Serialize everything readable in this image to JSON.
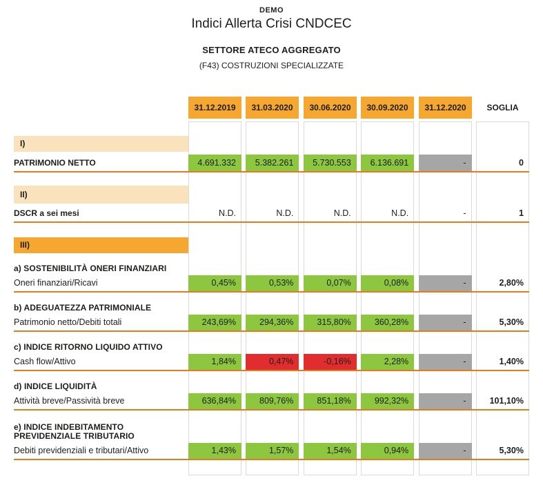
{
  "header": {
    "demo": "DEMO",
    "title": "Indici Allerta Crisi CNDCEC",
    "sector_label": "SETTORE ATECO AGGREGATO",
    "sector_value": "(F43) COSTRUZIONI SPECIALIZZATE"
  },
  "table": {
    "date_columns": [
      "31.12.2019",
      "31.03.2020",
      "30.06.2020",
      "30.09.2020",
      "31.12.2020"
    ],
    "soglia_label": "SOGLIA",
    "sections": [
      {
        "label": "I)"
      },
      {
        "label": "II)"
      },
      {
        "label": "III)"
      }
    ],
    "rows": [
      {
        "heading": null,
        "label": "PATRIMONIO NETTO",
        "label_bold": true,
        "cells": [
          {
            "value": "4.691.332",
            "status": "green"
          },
          {
            "value": "5.382.261",
            "status": "green"
          },
          {
            "value": "5.730.553",
            "status": "green"
          },
          {
            "value": "6.136.691",
            "status": "green"
          },
          {
            "value": "-",
            "status": "gray"
          }
        ],
        "soglia": "0"
      },
      {
        "heading": null,
        "label": "DSCR a sei mesi",
        "label_bold": true,
        "cells": [
          {
            "value": "N.D.",
            "status": "plain"
          },
          {
            "value": "N.D.",
            "status": "plain"
          },
          {
            "value": "N.D.",
            "status": "plain"
          },
          {
            "value": "N.D.",
            "status": "plain"
          },
          {
            "value": "-",
            "status": "plain"
          }
        ],
        "soglia": "1"
      },
      {
        "heading": "a) SOSTENIBILITÀ ONERI FINANZIARI",
        "label": "Oneri finanziari/Ricavi",
        "label_bold": false,
        "cells": [
          {
            "value": "0,45%",
            "status": "green"
          },
          {
            "value": "0,53%",
            "status": "green"
          },
          {
            "value": "0,07%",
            "status": "green"
          },
          {
            "value": "0,08%",
            "status": "green"
          },
          {
            "value": "-",
            "status": "gray"
          }
        ],
        "soglia": "2,80%"
      },
      {
        "heading": "b) ADEGUATEZZA PATRIMONIALE",
        "label": "Patrimonio netto/Debiti totali",
        "label_bold": false,
        "cells": [
          {
            "value": "243,69%",
            "status": "green"
          },
          {
            "value": "294,36%",
            "status": "green"
          },
          {
            "value": "315,80%",
            "status": "green"
          },
          {
            "value": "360,28%",
            "status": "green"
          },
          {
            "value": "-",
            "status": "gray"
          }
        ],
        "soglia": "5,30%"
      },
      {
        "heading": "c) INDICE RITORNO LIQUIDO ATTIVO",
        "label": "Cash flow/Attivo",
        "label_bold": false,
        "cells": [
          {
            "value": "1,84%",
            "status": "green"
          },
          {
            "value": "0,47%",
            "status": "red"
          },
          {
            "value": "-0,16%",
            "status": "red"
          },
          {
            "value": "2,28%",
            "status": "green"
          },
          {
            "value": "-",
            "status": "gray"
          }
        ],
        "soglia": "1,40%"
      },
      {
        "heading": "d) INDICE LIQUIDITÀ",
        "label": "Attività breve/Passività breve",
        "label_bold": false,
        "cells": [
          {
            "value": "636,84%",
            "status": "green"
          },
          {
            "value": "809,76%",
            "status": "green"
          },
          {
            "value": "851,18%",
            "status": "green"
          },
          {
            "value": "992,32%",
            "status": "green"
          },
          {
            "value": "-",
            "status": "gray"
          }
        ],
        "soglia": "101,10%"
      },
      {
        "heading": "e) INDICE INDEBITAMENTO PREVIDENZIALE TRIBUTARIO",
        "label": "Debiti previdenziali e tributari/Attivo",
        "label_bold": false,
        "cells": [
          {
            "value": "1,43%",
            "status": "green"
          },
          {
            "value": "1,57%",
            "status": "green"
          },
          {
            "value": "1,54%",
            "status": "green"
          },
          {
            "value": "0,94%",
            "status": "green"
          },
          {
            "value": "-",
            "status": "gray"
          }
        ],
        "soglia": "5,30%"
      }
    ]
  },
  "colors": {
    "orange": "#F5A72F",
    "peach": "#FAE3BC",
    "green": "#8DC63F",
    "red": "#E12D2D",
    "gray": "#A6A6A6",
    "rule_orange": "#E87A1C"
  }
}
